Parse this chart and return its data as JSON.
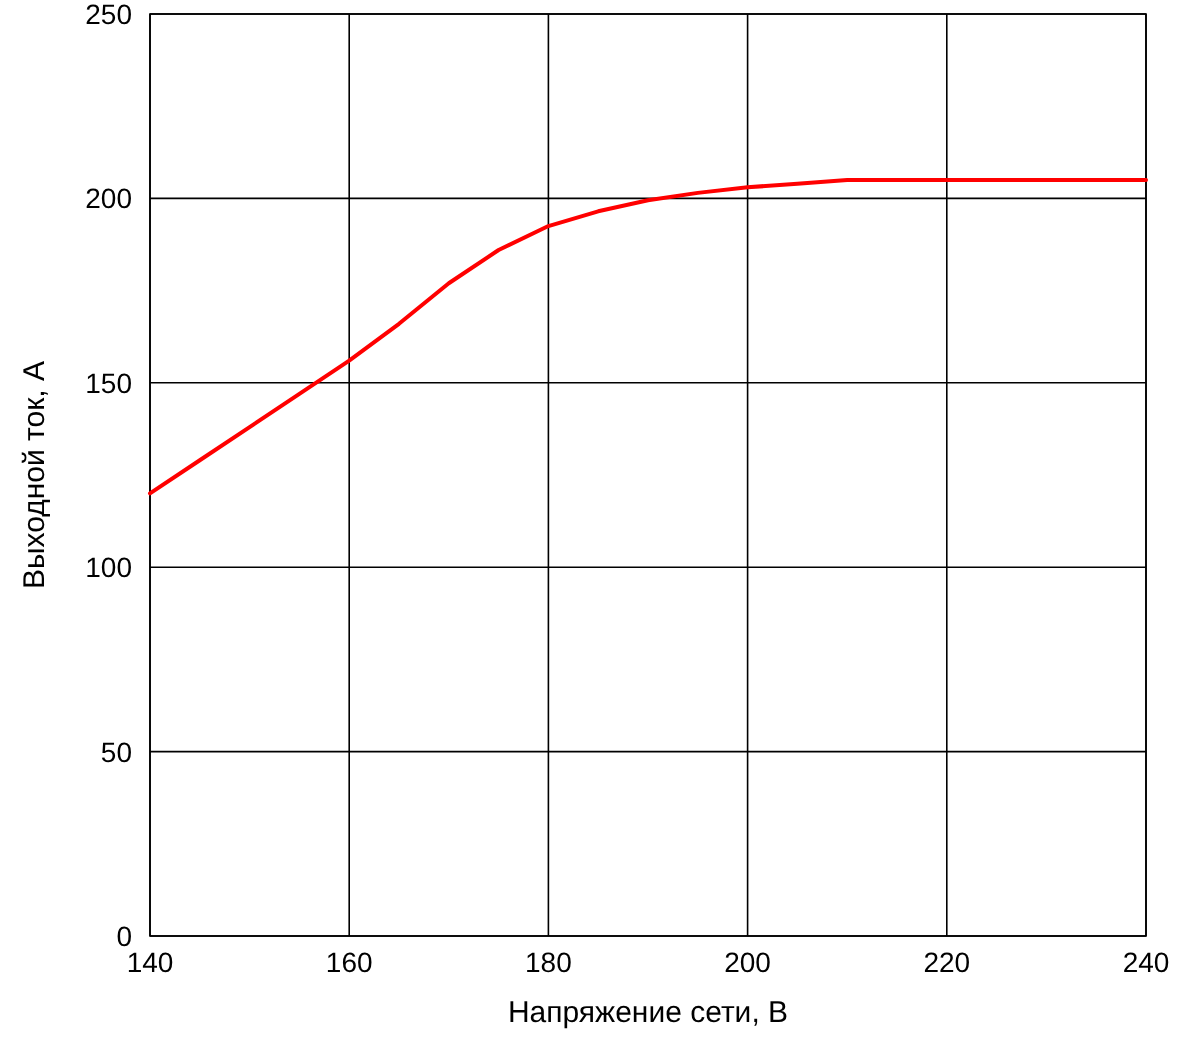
{
  "chart_data": {
    "type": "line",
    "xlabel": "Напряжение сети, В",
    "ylabel": "Выходной ток, А",
    "x": [
      140,
      145,
      150,
      155,
      160,
      165,
      170,
      175,
      180,
      185,
      190,
      195,
      200,
      205,
      210,
      220,
      230,
      240
    ],
    "series": [
      {
        "color": "#ff0000",
        "values": [
          120,
          129,
          138,
          147,
          156,
          166,
          177,
          186,
          192.5,
          196.5,
          199.5,
          201.5,
          203,
          204,
          205,
          205,
          205,
          205
        ]
      }
    ],
    "xlim": [
      140,
      240
    ],
    "xticks": [
      140,
      160,
      180,
      200,
      220,
      240
    ],
    "ylim": [
      0,
      250
    ],
    "yticks": [
      0,
      50,
      100,
      150,
      200,
      250
    ],
    "grid": true,
    "marker": "none",
    "line_style": "solid"
  }
}
